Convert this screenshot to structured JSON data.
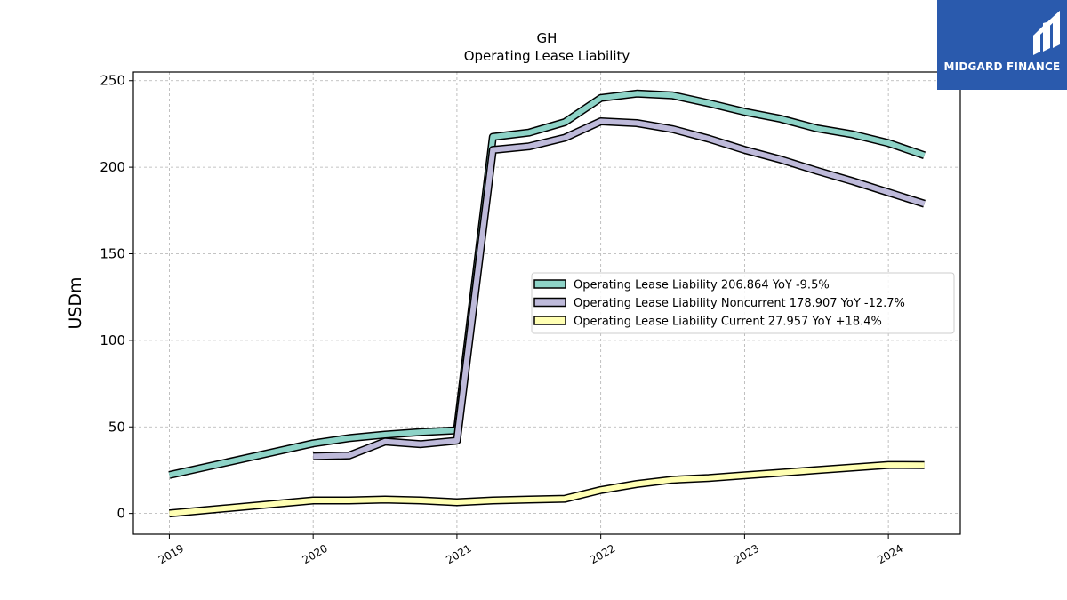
{
  "brand": {
    "name": "MIDGARD FINANCE",
    "bg_color": "#2a5aad",
    "icon": "midgard-logo-icon"
  },
  "chart_data": {
    "type": "line",
    "title": "GH",
    "subtitle": "Operating Lease Liability",
    "ylabel": "USDm",
    "xlabel": "",
    "xlim": [
      2018.75,
      2024.5
    ],
    "ylim": [
      -12,
      255
    ],
    "yticks": [
      0,
      50,
      100,
      150,
      200,
      250
    ],
    "xticks": [
      2019,
      2020,
      2021,
      2022,
      2023,
      2024
    ],
    "xtick_labels": [
      "2019",
      "2020",
      "2021",
      "2022",
      "2023",
      "2024"
    ],
    "grid": true,
    "legend_position": "center-right",
    "series": [
      {
        "name": "Operating Lease Liability",
        "legend_label": "Operating Lease Liability  206.864 YoY -9.5%",
        "color": "#8dd3c7",
        "points": [
          [
            2019.0,
            22.2
          ],
          [
            2020.0,
            40.5
          ],
          [
            2020.25,
            43.5
          ],
          [
            2020.5,
            45.5
          ],
          [
            2020.75,
            47.0
          ],
          [
            2021.0,
            48.0
          ],
          [
            2021.25,
            217.5
          ],
          [
            2021.5,
            220.0
          ],
          [
            2021.75,
            226.0
          ],
          [
            2022.0,
            240.0
          ],
          [
            2022.25,
            242.5
          ],
          [
            2022.5,
            241.5
          ],
          [
            2022.75,
            237.0
          ],
          [
            2023.0,
            232.0
          ],
          [
            2023.25,
            228.0
          ],
          [
            2023.5,
            222.5
          ],
          [
            2023.75,
            219.0
          ],
          [
            2024.0,
            214.0
          ],
          [
            2024.25,
            206.864
          ]
        ]
      },
      {
        "name": "Operating Lease Liability Noncurrent",
        "legend_label": "Operating Lease Liability Noncurrent  178.907 YoY -12.7%",
        "color": "#bebada",
        "points": [
          [
            2020.0,
            33.0
          ],
          [
            2020.25,
            33.5
          ],
          [
            2020.5,
            41.5
          ],
          [
            2020.75,
            40.0
          ],
          [
            2021.0,
            42.0
          ],
          [
            2021.25,
            210.0
          ],
          [
            2021.5,
            212.0
          ],
          [
            2021.75,
            217.0
          ],
          [
            2022.0,
            226.5
          ],
          [
            2022.25,
            225.5
          ],
          [
            2022.5,
            222.0
          ],
          [
            2022.75,
            216.5
          ],
          [
            2023.0,
            210.0
          ],
          [
            2023.25,
            204.5
          ],
          [
            2023.5,
            198.0
          ],
          [
            2023.75,
            192.0
          ],
          [
            2024.0,
            185.5
          ],
          [
            2024.25,
            178.907
          ]
        ]
      },
      {
        "name": "Operating Lease Liability Current",
        "legend_label": "Operating Lease Liability Current  27.957 YoY +18.4%",
        "color": "#ffffb3",
        "points": [
          [
            2019.0,
            0.0
          ],
          [
            2020.0,
            7.5
          ],
          [
            2020.25,
            7.5
          ],
          [
            2020.5,
            8.0
          ],
          [
            2020.75,
            7.5
          ],
          [
            2021.0,
            6.5
          ],
          [
            2021.25,
            7.5
          ],
          [
            2021.5,
            8.0
          ],
          [
            2021.75,
            8.5
          ],
          [
            2022.0,
            13.5
          ],
          [
            2022.25,
            17.0
          ],
          [
            2022.5,
            19.5
          ],
          [
            2022.75,
            20.5
          ],
          [
            2023.0,
            22.0
          ],
          [
            2023.25,
            23.5
          ],
          [
            2023.5,
            25.0
          ],
          [
            2023.75,
            26.5
          ],
          [
            2024.0,
            28.0
          ],
          [
            2024.25,
            27.957
          ]
        ]
      }
    ]
  }
}
